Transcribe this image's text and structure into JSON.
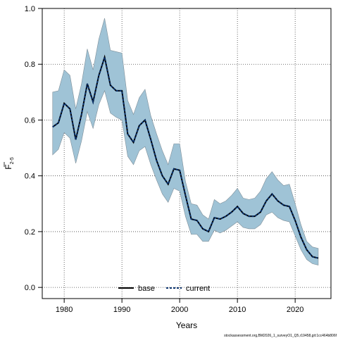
{
  "chart_data": {
    "type": "line",
    "title": "",
    "xlabel": "Years",
    "ylabel_main": "F",
    "ylabel_sub": "2-5",
    "xlim": [
      1976.2,
      2026.2
    ],
    "ylim": [
      -0.04,
      1.0
    ],
    "xticks": [
      1980,
      1990,
      2000,
      2010,
      2020
    ],
    "yticks": [
      0.0,
      0.2,
      0.4,
      0.6,
      0.8,
      1.0
    ],
    "ytick_labels": [
      "0.0",
      "0.2",
      "0.4",
      "0.6",
      "0.8",
      "1.0"
    ],
    "grid": true,
    "legend_placement": "bottom",
    "x": [
      1978,
      1979,
      1980,
      1981,
      1982,
      1983,
      1984,
      1985,
      1986,
      1987,
      1988,
      1989,
      1990,
      1991,
      1992,
      1993,
      1994,
      1995,
      1996,
      1997,
      1998,
      1999,
      2000,
      2001,
      2002,
      2003,
      2004,
      2005,
      2006,
      2007,
      2008,
      2009,
      2010,
      2011,
      2012,
      2013,
      2014,
      2015,
      2016,
      2017,
      2018,
      2019,
      2020,
      2021,
      2022,
      2023,
      2024
    ],
    "series": [
      {
        "name": "base",
        "color": "#000000",
        "style": "solid",
        "values": [
          0.575,
          0.59,
          0.66,
          0.64,
          0.53,
          0.62,
          0.73,
          0.665,
          0.76,
          0.825,
          0.725,
          0.705,
          0.705,
          0.55,
          0.52,
          0.58,
          0.6,
          0.53,
          0.455,
          0.4,
          0.37,
          0.425,
          0.42,
          0.33,
          0.245,
          0.24,
          0.21,
          0.2,
          0.25,
          0.245,
          0.255,
          0.27,
          0.29,
          0.265,
          0.255,
          0.255,
          0.27,
          0.31,
          0.335,
          0.31,
          0.295,
          0.29,
          0.24,
          0.18,
          0.135,
          0.11,
          0.105
        ]
      },
      {
        "name": "current",
        "color": "#08306b",
        "style": "dashed",
        "values": [
          0.575,
          0.59,
          0.66,
          0.64,
          0.53,
          0.62,
          0.73,
          0.665,
          0.76,
          0.825,
          0.725,
          0.705,
          0.705,
          0.55,
          0.52,
          0.58,
          0.6,
          0.53,
          0.455,
          0.4,
          0.37,
          0.425,
          0.42,
          0.33,
          0.245,
          0.24,
          0.21,
          0.2,
          0.25,
          0.245,
          0.255,
          0.27,
          0.29,
          0.265,
          0.255,
          0.255,
          0.27,
          0.31,
          0.335,
          0.31,
          0.295,
          0.29,
          0.24,
          0.18,
          0.135,
          0.11,
          0.105
        ]
      }
    ],
    "band": {
      "color": "#9fc3d6",
      "upper": [
        0.7,
        0.705,
        0.78,
        0.76,
        0.64,
        0.73,
        0.855,
        0.78,
        0.89,
        0.965,
        0.85,
        0.845,
        0.84,
        0.67,
        0.62,
        0.68,
        0.71,
        0.615,
        0.55,
        0.49,
        0.44,
        0.515,
        0.515,
        0.38,
        0.3,
        0.295,
        0.26,
        0.245,
        0.315,
        0.3,
        0.31,
        0.33,
        0.355,
        0.32,
        0.315,
        0.32,
        0.345,
        0.39,
        0.415,
        0.385,
        0.365,
        0.37,
        0.3,
        0.225,
        0.165,
        0.145,
        0.14
      ],
      "lower": [
        0.475,
        0.495,
        0.555,
        0.535,
        0.445,
        0.525,
        0.63,
        0.57,
        0.655,
        0.705,
        0.625,
        0.61,
        0.6,
        0.47,
        0.44,
        0.49,
        0.505,
        0.44,
        0.385,
        0.335,
        0.305,
        0.355,
        0.345,
        0.255,
        0.19,
        0.19,
        0.165,
        0.165,
        0.205,
        0.195,
        0.205,
        0.22,
        0.235,
        0.215,
        0.21,
        0.21,
        0.225,
        0.26,
        0.27,
        0.25,
        0.24,
        0.235,
        0.185,
        0.135,
        0.1,
        0.085,
        0.08
      ]
    },
    "caption": "stockassessment.org,BM2026_1_surveyO1_Q5,r19458,git:1cc464b806f"
  }
}
